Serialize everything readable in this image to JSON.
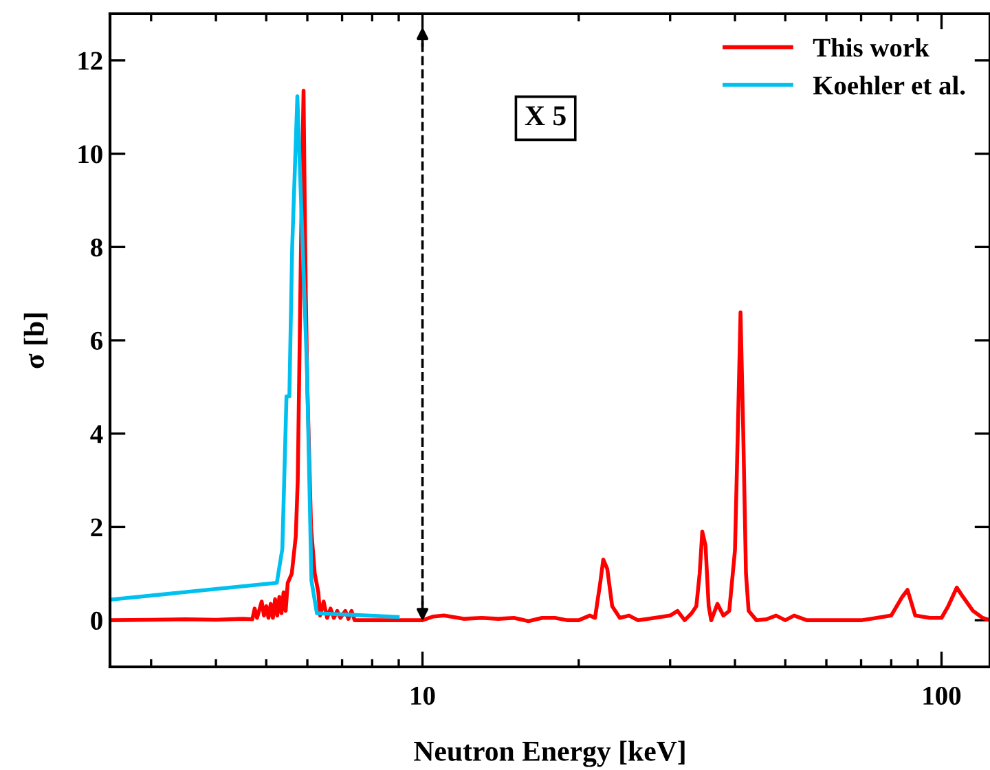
{
  "chart_data": {
    "type": "line",
    "xlabel": "Neutron Energy [keV]",
    "ylabel": "σ [b]",
    "log": "x",
    "xlim": [
      2.5,
      124
    ],
    "xticks": [
      10,
      100
    ],
    "ylim": [
      -1,
      13
    ],
    "yticks": [
      0,
      2,
      4,
      6,
      8,
      10,
      12
    ],
    "grid": false,
    "legend": "top right",
    "marker": "none",
    "line_style": "solid",
    "annotations": [
      "X 5"
    ],
    "ref_lines": [
      {
        "axis": "x",
        "value": 10,
        "line_style": "dashed",
        "color": "#000000"
      }
    ],
    "series": [
      {
        "name": "This work",
        "color": "#ff0000",
        "x": [
          2.5,
          3,
          3.5,
          4,
          4.5,
          4.7,
          4.75,
          4.8,
          4.9,
          4.95,
          5.0,
          5.05,
          5.1,
          5.15,
          5.2,
          5.25,
          5.3,
          5.35,
          5.4,
          5.45,
          5.5,
          5.6,
          5.7,
          5.75,
          5.8,
          5.85,
          5.9,
          5.93,
          5.96,
          6.0,
          6.05,
          6.1,
          6.2,
          6.3,
          6.35,
          6.45,
          6.55,
          6.65,
          6.75,
          6.85,
          6.95,
          7.1,
          7.2,
          7.3,
          7.4,
          8,
          9,
          10,
          10.5,
          11,
          12,
          13,
          14,
          15,
          16,
          17,
          18,
          19,
          20,
          21,
          21.5,
          22,
          22.3,
          22.7,
          23.2,
          24,
          25,
          26,
          28,
          30,
          31,
          32,
          33,
          33.7,
          34.2,
          34.6,
          35.1,
          35.6,
          36,
          37,
          38,
          39,
          40,
          40.5,
          41,
          41.5,
          42,
          42.5,
          44,
          46,
          48,
          50,
          52,
          55,
          60,
          70,
          75,
          80,
          84,
          86,
          89,
          95,
          100,
          103,
          107,
          110,
          115,
          120,
          124
        ],
        "values": [
          0,
          0.01,
          0.02,
          0.01,
          0.03,
          0.02,
          0.25,
          0.05,
          0.4,
          0.1,
          0.3,
          0.05,
          0.35,
          0.05,
          0.45,
          0.1,
          0.5,
          0.15,
          0.6,
          0.2,
          0.8,
          1.0,
          1.8,
          3,
          6,
          9,
          11.35,
          9,
          6.95,
          5,
          3.5,
          2,
          1.0,
          0.6,
          0.1,
          0.4,
          0.05,
          0.25,
          0.05,
          0.2,
          0.05,
          0.2,
          0.03,
          0.2,
          0.0,
          0.0,
          0.0,
          0.0,
          0.08,
          0.1,
          0.03,
          0.05,
          0.03,
          0.05,
          -0.02,
          0.05,
          0.05,
          0.0,
          0.0,
          0.1,
          0.05,
          0.8,
          1.3,
          1.1,
          0.3,
          0.05,
          0.1,
          0.0,
          0.05,
          0.1,
          0.2,
          0.0,
          0.15,
          0.3,
          1.0,
          1.9,
          1.6,
          0.3,
          0.0,
          0.35,
          0.1,
          0.2,
          1.5,
          4,
          6.6,
          4,
          1,
          0.2,
          0.0,
          0.02,
          0.1,
          0.0,
          0.1,
          0.0,
          0.0,
          0.0,
          0.05,
          0.1,
          0.5,
          0.65,
          0.1,
          0.05,
          0.05,
          0.3,
          0.7,
          0.5,
          0.2,
          0.05,
          0.0
        ]
      },
      {
        "name": "Koehler et al.",
        "color": "#00c0ef",
        "x": [
          2.5,
          5.24,
          5.37,
          5.47,
          5.54,
          5.61,
          5.74,
          5.99,
          6.11,
          6.26,
          8.96
        ],
        "values": [
          0.44,
          0.8,
          1.53,
          4.8,
          4.8,
          8.0,
          11.23,
          5.4,
          0.85,
          0.15,
          0.07
        ]
      }
    ]
  }
}
